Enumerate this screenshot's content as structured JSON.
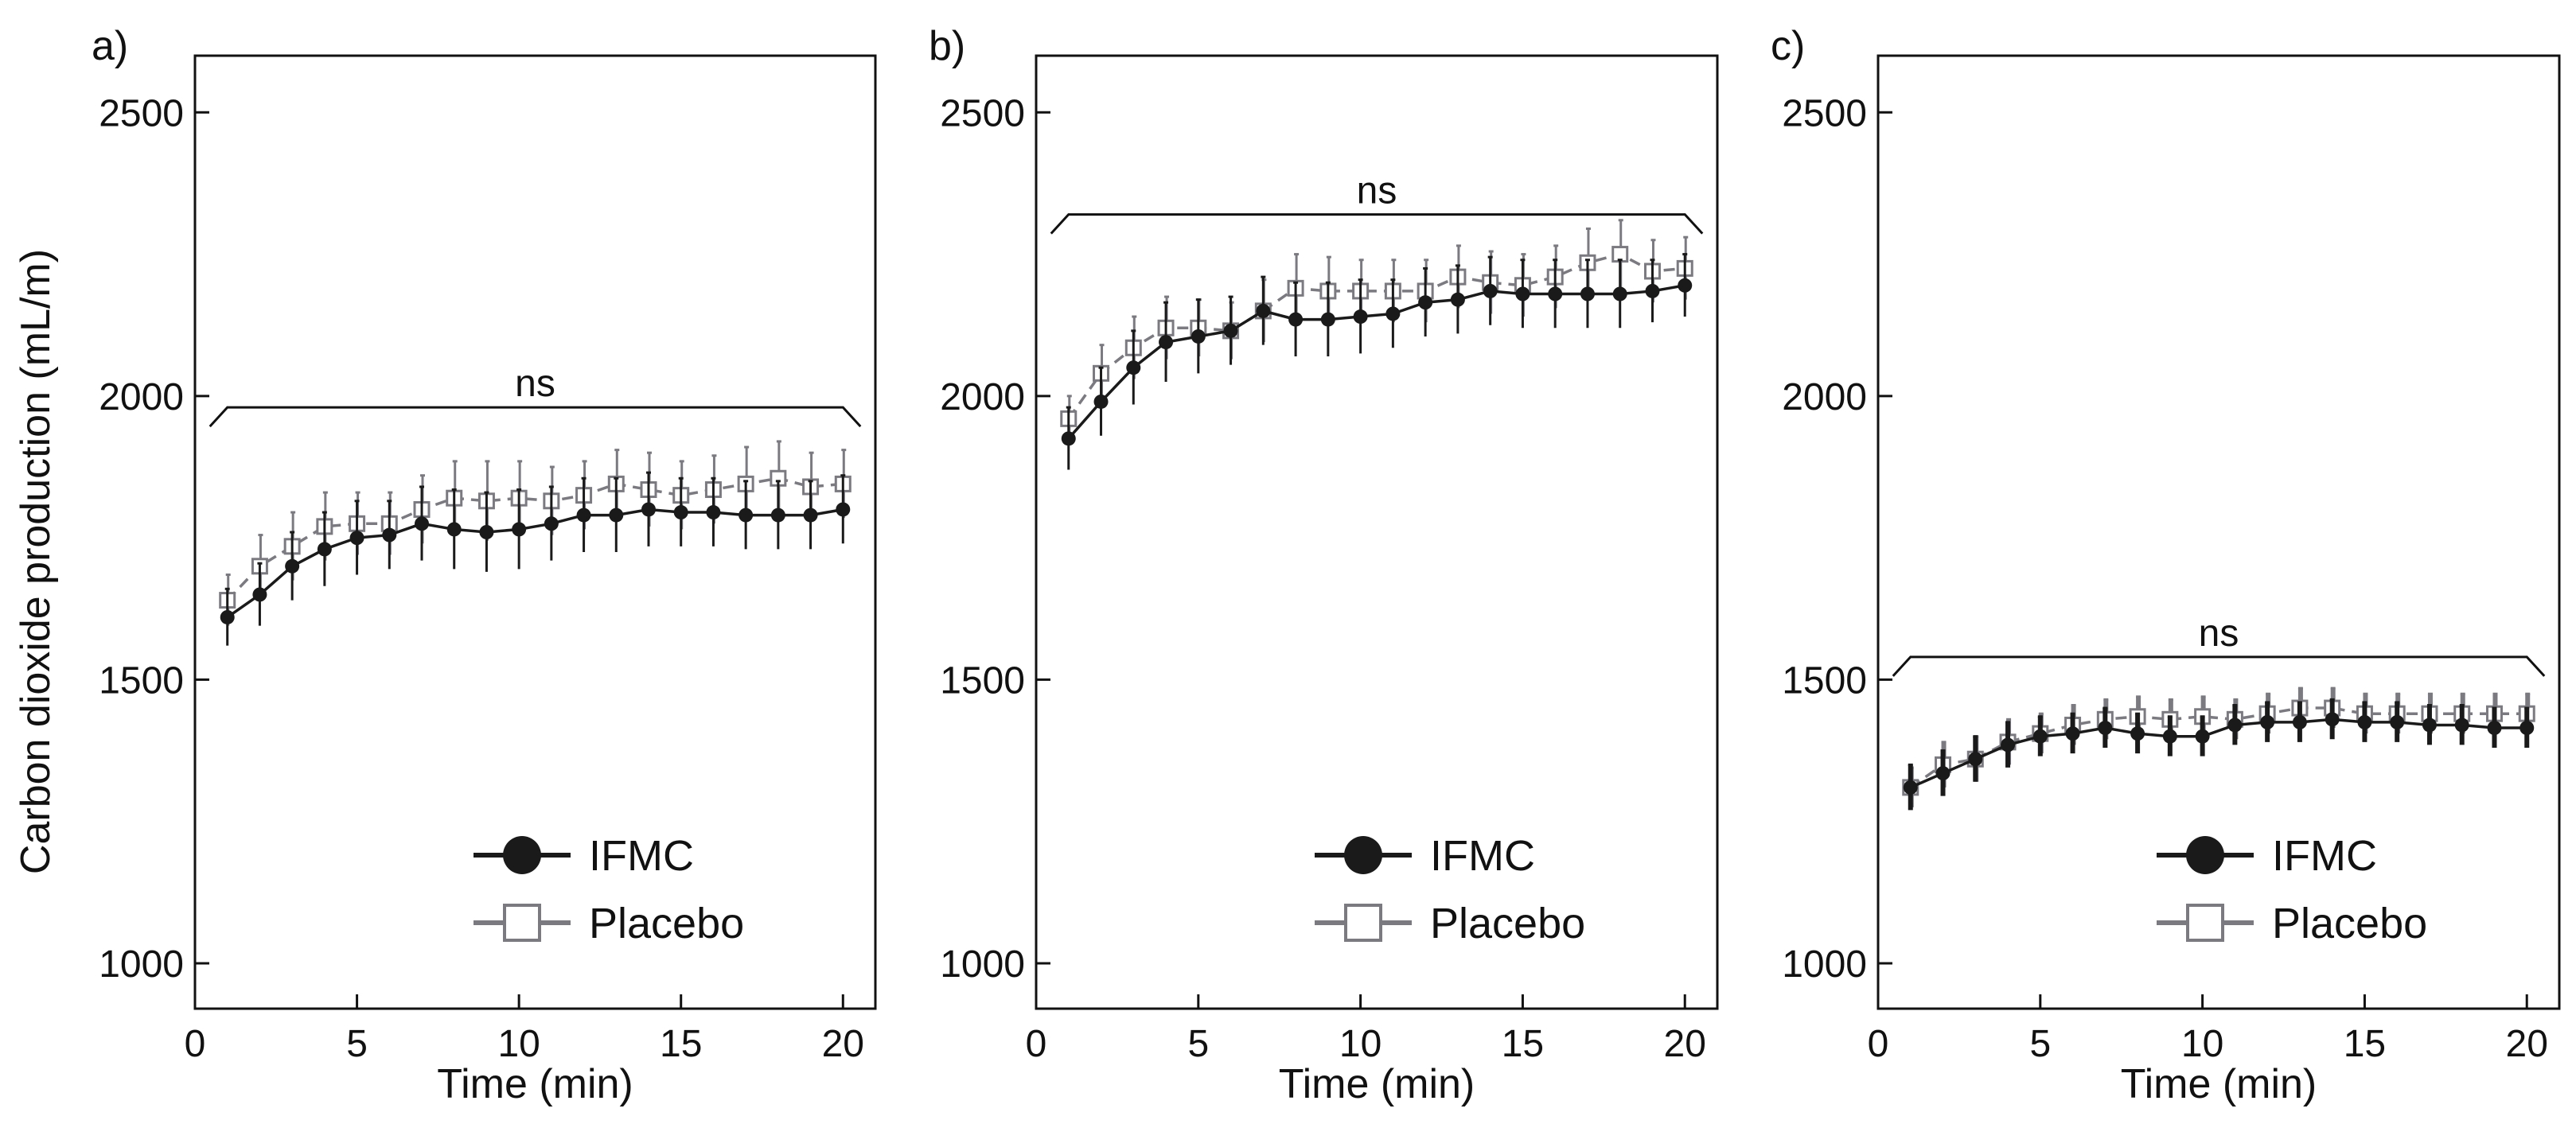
{
  "figure": {
    "ylabel": "Carbon dioxide production (mL/m)"
  },
  "chart_data": [
    {
      "type": "line",
      "panel_label": "a)",
      "xlabel": "Time (min)",
      "ylabel": "Carbon dioxide production (mL/m)",
      "xlim": [
        0,
        21
      ],
      "ylim": [
        920,
        2600
      ],
      "xticks": [
        0,
        5,
        10,
        15,
        20
      ],
      "yticks": [
        1000,
        1500,
        2000,
        2500
      ],
      "x": [
        1,
        2,
        3,
        4,
        5,
        6,
        7,
        8,
        9,
        10,
        11,
        12,
        13,
        14,
        15,
        16,
        17,
        18,
        19,
        20
      ],
      "significance": {
        "label": "ns",
        "y": 1980
      },
      "legend_position": "bottom-right",
      "series": [
        {
          "name": "IFMC",
          "marker": "filled-circle",
          "color": "#1a1a1a",
          "values": [
            1610,
            1650,
            1700,
            1730,
            1750,
            1755,
            1775,
            1765,
            1760,
            1765,
            1775,
            1790,
            1790,
            1800,
            1795,
            1795,
            1790,
            1790,
            1790,
            1800
          ],
          "error": [
            50,
            55,
            60,
            65,
            65,
            60,
            65,
            70,
            70,
            70,
            65,
            65,
            65,
            65,
            60,
            60,
            60,
            60,
            60,
            60
          ]
        },
        {
          "name": "Placebo",
          "marker": "open-square",
          "color": "#7a7a80",
          "values": [
            1640,
            1700,
            1735,
            1770,
            1775,
            1775,
            1800,
            1820,
            1815,
            1820,
            1815,
            1825,
            1845,
            1835,
            1825,
            1835,
            1845,
            1855,
            1840,
            1845
          ],
          "error": [
            45,
            55,
            60,
            60,
            55,
            55,
            60,
            65,
            70,
            65,
            60,
            60,
            60,
            65,
            60,
            60,
            65,
            65,
            60,
            60
          ]
        }
      ]
    },
    {
      "type": "line",
      "panel_label": "b)",
      "xlabel": "Time (min)",
      "ylabel": "",
      "xlim": [
        0,
        21
      ],
      "ylim": [
        920,
        2600
      ],
      "xticks": [
        0,
        5,
        10,
        15,
        20
      ],
      "yticks": [
        1000,
        1500,
        2000,
        2500
      ],
      "x": [
        1,
        2,
        3,
        4,
        5,
        6,
        7,
        8,
        9,
        10,
        11,
        12,
        13,
        14,
        15,
        16,
        17,
        18,
        19,
        20
      ],
      "significance": {
        "label": "ns",
        "y": 2320
      },
      "legend_position": "bottom-right",
      "series": [
        {
          "name": "IFMC",
          "marker": "filled-circle",
          "color": "#1a1a1a",
          "values": [
            1925,
            1990,
            2050,
            2095,
            2105,
            2115,
            2150,
            2135,
            2135,
            2140,
            2145,
            2165,
            2170,
            2185,
            2180,
            2180,
            2180,
            2180,
            2185,
            2195
          ],
          "error": [
            55,
            60,
            65,
            70,
            65,
            60,
            60,
            65,
            65,
            65,
            60,
            60,
            60,
            60,
            60,
            60,
            60,
            60,
            55,
            55
          ]
        },
        {
          "name": "Placebo",
          "marker": "open-square",
          "color": "#7a7a80",
          "values": [
            1960,
            2040,
            2085,
            2120,
            2120,
            2115,
            2150,
            2190,
            2185,
            2185,
            2185,
            2185,
            2210,
            2200,
            2195,
            2210,
            2235,
            2250,
            2220,
            2225
          ],
          "error": [
            40,
            50,
            55,
            55,
            50,
            50,
            55,
            60,
            60,
            55,
            55,
            55,
            55,
            55,
            55,
            55,
            60,
            60,
            55,
            55
          ]
        }
      ]
    },
    {
      "type": "line",
      "panel_label": "c)",
      "xlabel": "Time (min)",
      "ylabel": "",
      "xlim": [
        0,
        21
      ],
      "ylim": [
        920,
        2600
      ],
      "xticks": [
        0,
        5,
        10,
        15,
        20
      ],
      "yticks": [
        1000,
        1500,
        2000,
        2500
      ],
      "x": [
        1,
        2,
        3,
        4,
        5,
        6,
        7,
        8,
        9,
        10,
        11,
        12,
        13,
        14,
        15,
        16,
        17,
        18,
        19,
        20
      ],
      "significance": {
        "label": "ns",
        "y": 1540
      },
      "legend_position": "bottom-right",
      "series": [
        {
          "name": "IFMC",
          "marker": "filled-circle",
          "color": "#1a1a1a",
          "values": [
            1310,
            1335,
            1360,
            1385,
            1400,
            1405,
            1415,
            1405,
            1400,
            1400,
            1420,
            1425,
            1425,
            1430,
            1425,
            1425,
            1420,
            1420,
            1415,
            1415
          ],
          "error": [
            40,
            40,
            40,
            40,
            35,
            35,
            35,
            35,
            35,
            35,
            35,
            35,
            35,
            35,
            35,
            35,
            35,
            35,
            35,
            35
          ]
        },
        {
          "name": "Placebo",
          "marker": "open-square",
          "color": "#7a7a80",
          "values": [
            1310,
            1350,
            1360,
            1390,
            1405,
            1420,
            1430,
            1435,
            1430,
            1435,
            1430,
            1440,
            1450,
            1450,
            1440,
            1440,
            1440,
            1440,
            1440,
            1440
          ],
          "error": [
            35,
            40,
            40,
            40,
            35,
            35,
            35,
            35,
            35,
            35,
            35,
            35,
            35,
            35,
            35,
            35,
            35,
            35,
            35,
            35
          ]
        }
      ]
    }
  ]
}
